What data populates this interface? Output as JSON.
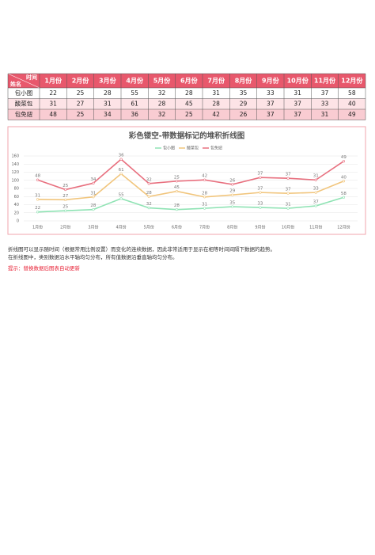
{
  "table": {
    "corner_top": "时间",
    "corner_bottom": "姓名",
    "columns": [
      "1月份",
      "2月份",
      "3月份",
      "4月份",
      "5月份",
      "6月份",
      "7月份",
      "8月份",
      "9月份",
      "10月份",
      "11月份",
      "12月份"
    ],
    "rows": [
      {
        "name": "包小图",
        "values": [
          22,
          25,
          28,
          55,
          32,
          28,
          31,
          35,
          33,
          31,
          37,
          58
        ]
      },
      {
        "name": "酸菜包",
        "values": [
          31,
          27,
          31,
          61,
          28,
          45,
          28,
          29,
          37,
          37,
          33,
          40
        ]
      },
      {
        "name": "包免妞",
        "values": [
          48,
          25,
          34,
          36,
          32,
          25,
          42,
          26,
          37,
          37,
          31,
          49
        ]
      }
    ]
  },
  "chart_data": {
    "type": "line",
    "stacked": true,
    "title": "彩色镂空-带数据标记的堆积折线图",
    "categories": [
      "1月份",
      "2月份",
      "3月份",
      "4月份",
      "5月份",
      "6月份",
      "7月份",
      "8月份",
      "9月份",
      "10月份",
      "11月份",
      "12月份"
    ],
    "series": [
      {
        "name": "包小图",
        "color": "#8fe3b4",
        "values": [
          22,
          25,
          28,
          55,
          32,
          28,
          31,
          35,
          33,
          31,
          37,
          58
        ]
      },
      {
        "name": "酸菜包",
        "color": "#f1c57c",
        "values": [
          31,
          27,
          31,
          61,
          28,
          45,
          28,
          29,
          37,
          37,
          33,
          40
        ]
      },
      {
        "name": "包免妞",
        "color": "#e8707f",
        "values": [
          48,
          25,
          34,
          36,
          32,
          25,
          42,
          26,
          37,
          37,
          31,
          49
        ]
      }
    ],
    "ylim": [
      0,
      160
    ],
    "yticks": [
      0,
      20,
      40,
      60,
      80,
      100,
      120,
      140,
      160
    ],
    "grid": true,
    "legend": "top"
  },
  "notes": [
    "折线图可以显示随时间（根据常用比例设置）而变化的连续数据，因此非常适用于显示在相等时间间隔下数据的趋势。",
    "在折线图中，类别数据沿水平轴均匀分布，所有值数据沿垂直轴均匀分布。"
  ],
  "tip": "提示：替换数据后图表自动更新"
}
